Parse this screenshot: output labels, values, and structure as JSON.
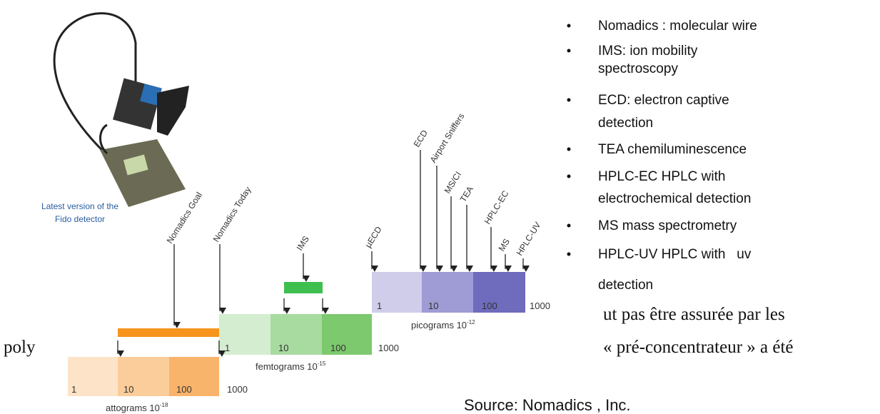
{
  "figure": {
    "caption": [
      "Latest version of the",
      "Fido detector"
    ],
    "labels": {
      "nomadics_goal": "Nomadics Goal",
      "nomadics_today": "Nomadics Today",
      "ims": "IMS",
      "uecd": "µECD",
      "ecd": "ECD",
      "airport": "Airport Sniffers",
      "msci": "MS/CI",
      "tea": "TEA",
      "hplc_ec": "HPLC-EC",
      "ms": "MS",
      "hplc_uv": "HPLC-UV"
    },
    "scales": [
      {
        "ticks": [
          "1",
          "10",
          "100",
          "1000"
        ],
        "unit": "attograms 10",
        "exponent": "-18"
      },
      {
        "ticks": [
          "1",
          "10",
          "100",
          "1000"
        ],
        "unit": "femtograms 10",
        "exponent": "-15"
      },
      {
        "ticks": [
          "1",
          "10",
          "100",
          "1000"
        ],
        "unit": "picograms 10",
        "exponent": "-12"
      }
    ]
  },
  "bullets": [
    [
      "Nomadics : molecular wire"
    ],
    [
      "IMS: ion mobility",
      "spectroscopy"
    ],
    [
      "ECD: electron captive",
      "detection"
    ],
    [
      "TEA chemiluminescence"
    ],
    [
      "HPLC-EC HPLC with",
      "electrochemical detection"
    ],
    [
      "MS mass spectrometry"
    ],
    [
      "HPLC-UV HPLC with   uv",
      "detection"
    ]
  ],
  "background_text": [
    "ut pas être assurée par les",
    "poly",
    "« pré-concentrateur » a été"
  ],
  "source": "Source: Nomadics , Inc."
}
